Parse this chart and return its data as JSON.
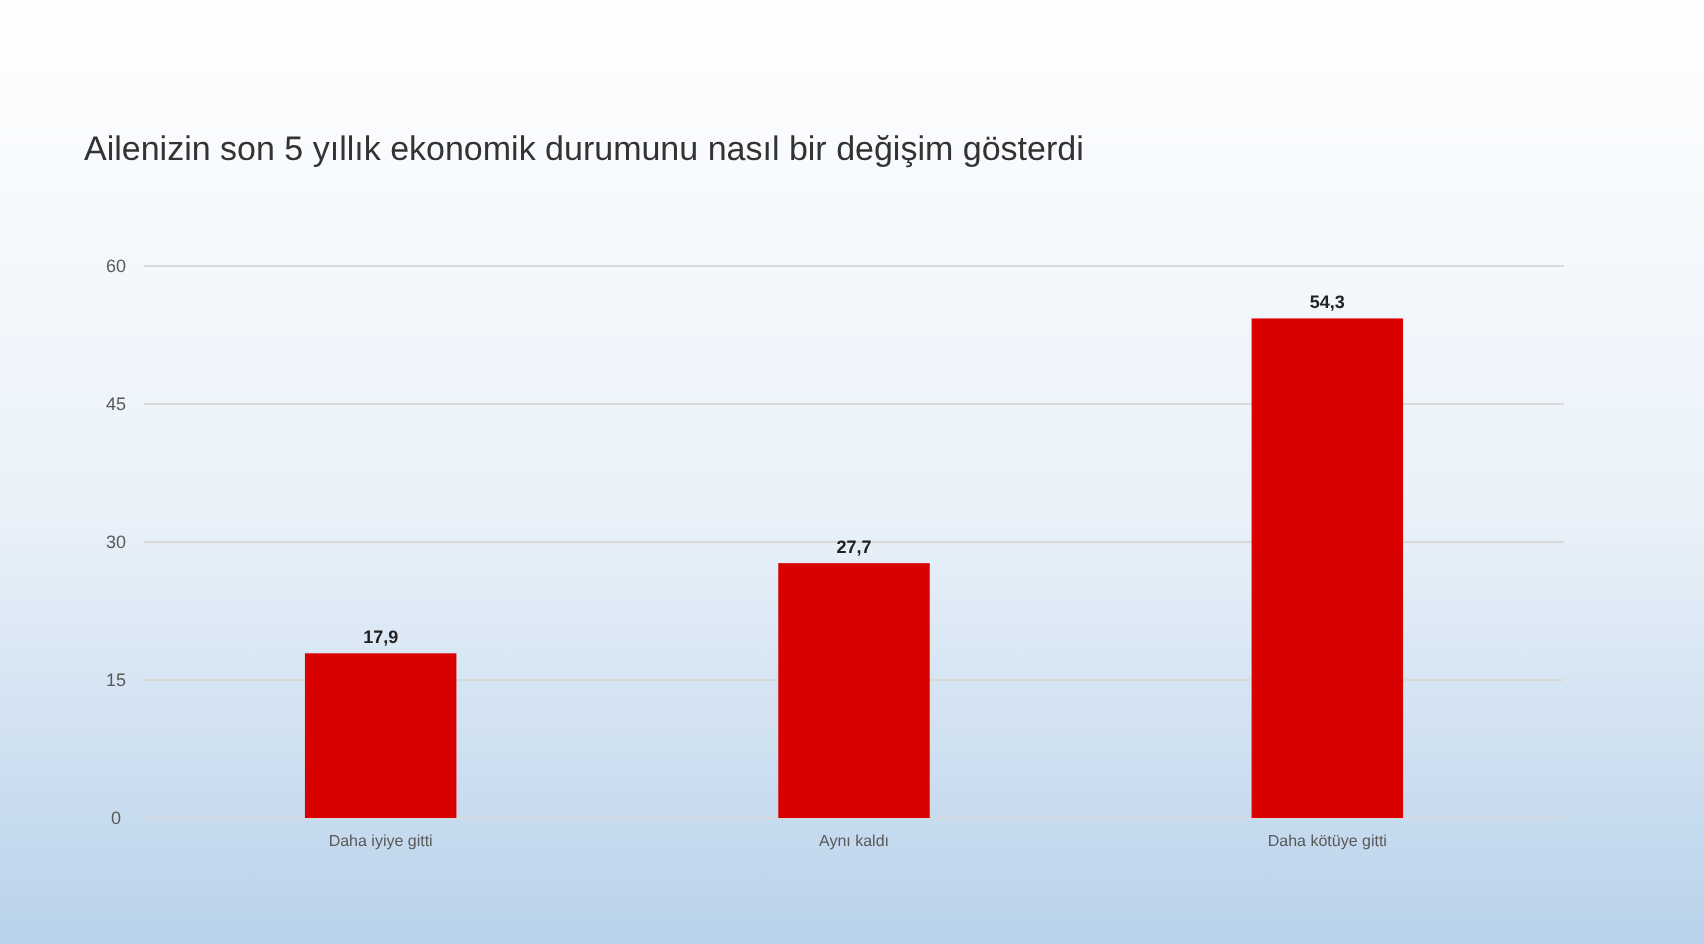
{
  "chart_data": {
    "type": "bar",
    "title": "Ailenizin son 5 yıllık  ekonomik durumunu nasıl bir değişim gösterdi",
    "categories": [
      "Daha iyiye gitti",
      "Aynı kaldı",
      "Daha kötüye gitti"
    ],
    "values": [
      17.9,
      27.7,
      54.3
    ],
    "value_labels": [
      "17,9",
      "27,7",
      "54,3"
    ],
    "color": "#d90000",
    "ylim": [
      0,
      60
    ],
    "yticks": [
      0,
      15,
      30,
      45,
      60
    ],
    "grid": "y"
  }
}
